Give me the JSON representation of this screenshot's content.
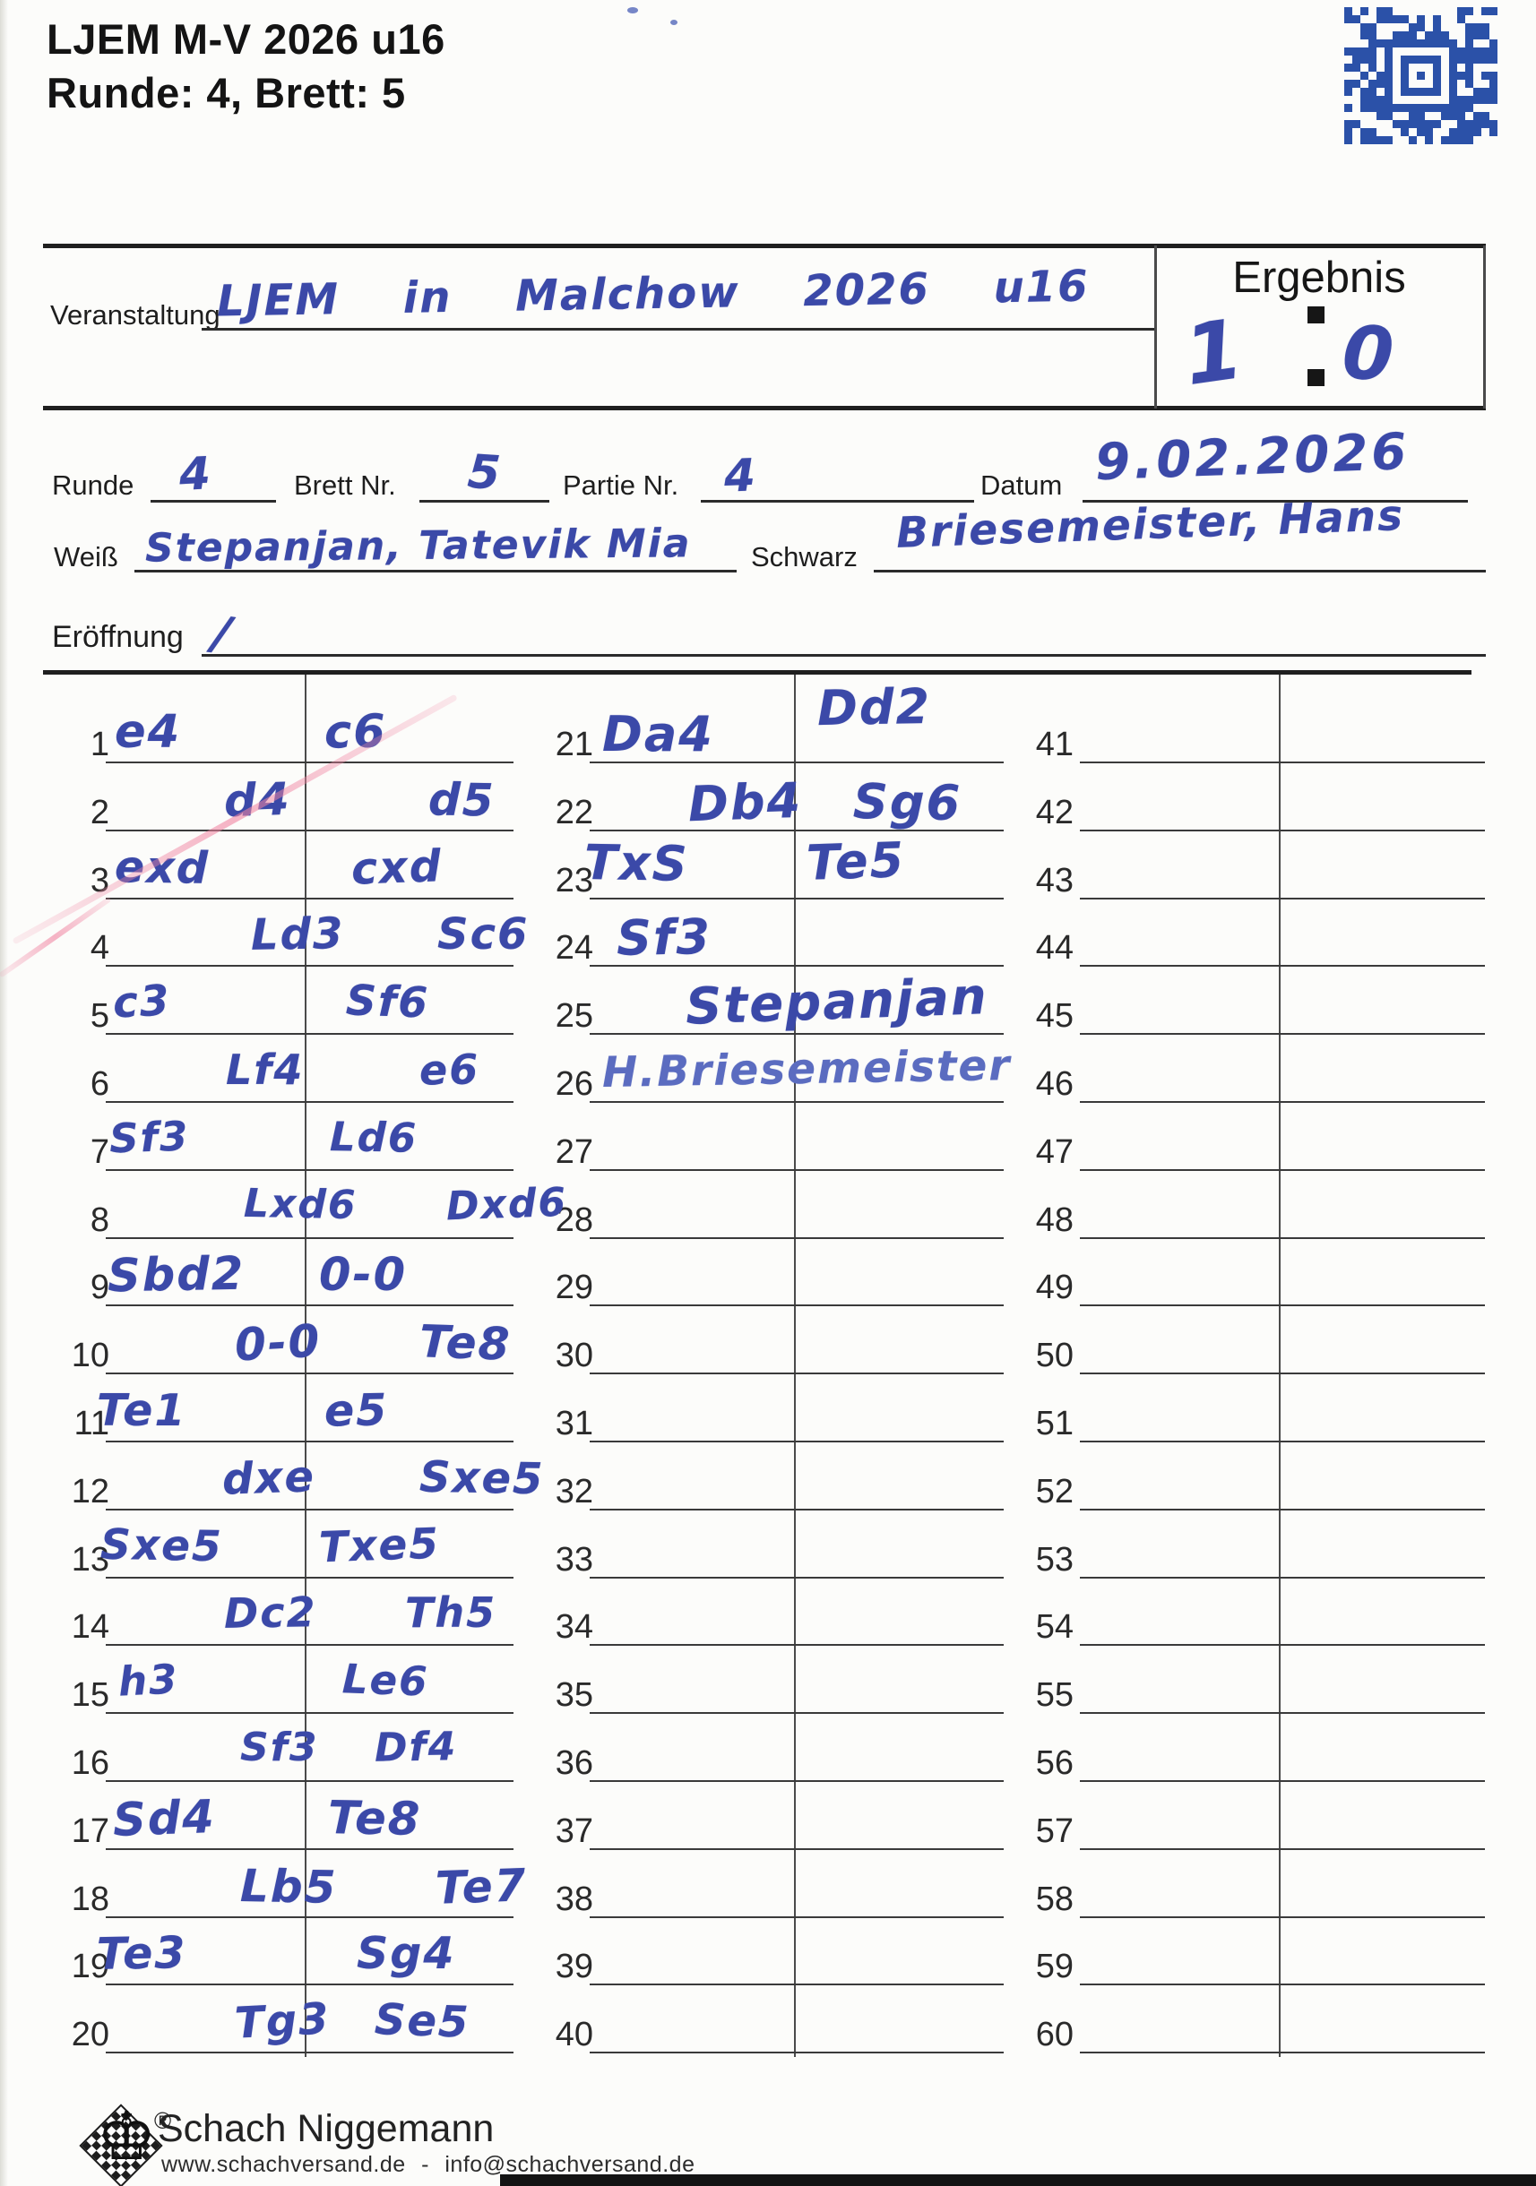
{
  "header": {
    "title_line1": "LJEM M-V 2026 u16",
    "title_line2": "Runde: 4, Brett: 5"
  },
  "result_box": {
    "label": "Ergebnis",
    "white_score": "1",
    "black_score": "0"
  },
  "fields": {
    "veranstaltung_label": "Veranstaltung",
    "veranstaltung_value": "LJEM in Malchow 2026 u16",
    "runde_label": "Runde",
    "runde_value": "4",
    "brett_label": "Brett Nr.",
    "brett_value": "5",
    "partie_label": "Partie Nr.",
    "partie_value": "4",
    "datum_label": "Datum",
    "datum_value": "9.02.2026",
    "weiss_label": "Weiß",
    "weiss_value": "Stepanjan, Tatevik Mia",
    "schwarz_label": "Schwarz",
    "schwarz_value": "Briesemeister, Hans",
    "eroeffnung_label": "Eröffnung",
    "eroeffnung_value": "/"
  },
  "scoresheet": {
    "total_rows": 60,
    "rows_per_column": 20,
    "moves": [
      {
        "n": 1,
        "w": "e4",
        "b": "c6"
      },
      {
        "n": 2,
        "w": "d4",
        "b": "d5"
      },
      {
        "n": 3,
        "w": "exd",
        "b": "cxd"
      },
      {
        "n": 4,
        "w": "Ld3",
        "b": "Sc6"
      },
      {
        "n": 5,
        "w": "c3",
        "b": "Sf6"
      },
      {
        "n": 6,
        "w": "Lf4",
        "b": "e6"
      },
      {
        "n": 7,
        "w": "Sf3",
        "b": "Ld6"
      },
      {
        "n": 8,
        "w": "Lxd6",
        "b": "Dxd6"
      },
      {
        "n": 9,
        "w": "Sbd2",
        "b": "0-0"
      },
      {
        "n": 10,
        "w": "0-0",
        "b": "Te8"
      },
      {
        "n": 11,
        "w": "Te1",
        "b": "e5"
      },
      {
        "n": 12,
        "w": "dxe",
        "b": "Sxe5"
      },
      {
        "n": 13,
        "w": "Sxe5",
        "b": "Txe5"
      },
      {
        "n": 14,
        "w": "Dc2",
        "b": "Th5"
      },
      {
        "n": 15,
        "w": "h3",
        "b": "Le6"
      },
      {
        "n": 16,
        "w": "Sf3",
        "b": "Df4"
      },
      {
        "n": 17,
        "w": "Sd4",
        "b": "Te8"
      },
      {
        "n": 18,
        "w": "Lb5",
        "b": "Te7"
      },
      {
        "n": 19,
        "w": "Te3",
        "b": "Sg4"
      },
      {
        "n": 20,
        "w": "Tg3",
        "b": "Se5"
      },
      {
        "n": 21,
        "w": "Da4",
        "b": "Dd2"
      },
      {
        "n": 22,
        "w": "Db4",
        "b": "Sg6"
      },
      {
        "n": 23,
        "w": "TxS",
        "b": "Te5"
      },
      {
        "n": 24,
        "w": "Sf3",
        "b": ""
      }
    ],
    "signatures": {
      "white_signature": "Stepanjan",
      "black_signature": "H.Briesemeister"
    }
  },
  "footer": {
    "brand": "Schach Niggemann",
    "website": "www.schachversand.de",
    "separator": "-",
    "email": "info@schachversand.de",
    "registered_mark": "®"
  },
  "colors": {
    "ink_blue": "#3b49a8",
    "code_blue": "#2b51a8",
    "pink_mark": "#f08aa0",
    "paper": "#fcfcfa"
  }
}
